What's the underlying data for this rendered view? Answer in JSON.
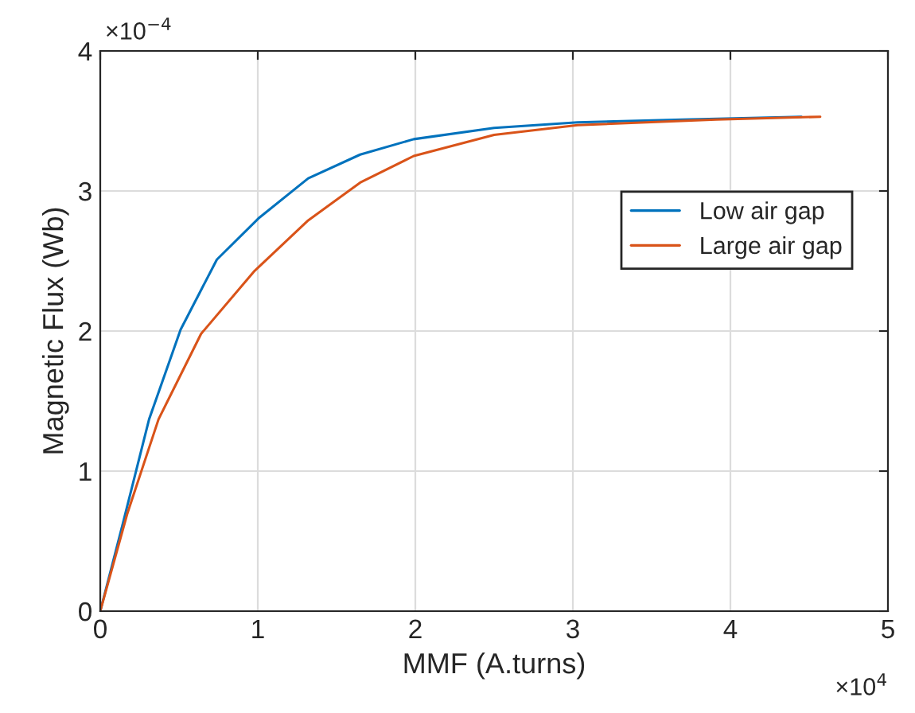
{
  "chart_data": {
    "type": "line",
    "xlabel": "MMF (A.turns)",
    "ylabel": "Magnetic Flux (Wb)",
    "series": [
      {
        "name": "Low air gap",
        "color": "#0072bd",
        "x": [
          0,
          0.14,
          0.31,
          0.51,
          0.74,
          1.01,
          1.32,
          1.65,
          1.99,
          2.5,
          3.03,
          3.7,
          4.45
        ],
        "values": [
          0,
          0.61,
          1.37,
          2.01,
          2.51,
          2.81,
          3.09,
          3.26,
          3.37,
          3.45,
          3.49,
          3.51,
          3.53
        ]
      },
      {
        "name": "Large air gap",
        "color": "#d95319",
        "x": [
          0,
          0.17,
          0.37,
          0.64,
          0.98,
          1.32,
          1.65,
          1.99,
          2.5,
          3.03,
          3.91,
          4.57
        ],
        "values": [
          0,
          0.69,
          1.37,
          1.98,
          2.43,
          2.79,
          3.06,
          3.25,
          3.4,
          3.47,
          3.51,
          3.53
        ]
      }
    ],
    "xlim": [
      0,
      5
    ],
    "ylim": [
      0,
      4
    ],
    "xticks": [
      0,
      1,
      2,
      3,
      4,
      5
    ],
    "yticks": [
      0,
      1,
      2,
      3,
      4
    ],
    "annotations": [
      "×10$^{4}$",
      "×10$^{−4}$"
    ],
    "grid": true,
    "legend": "right",
    "marker": "none",
    "line_style": "solid"
  }
}
